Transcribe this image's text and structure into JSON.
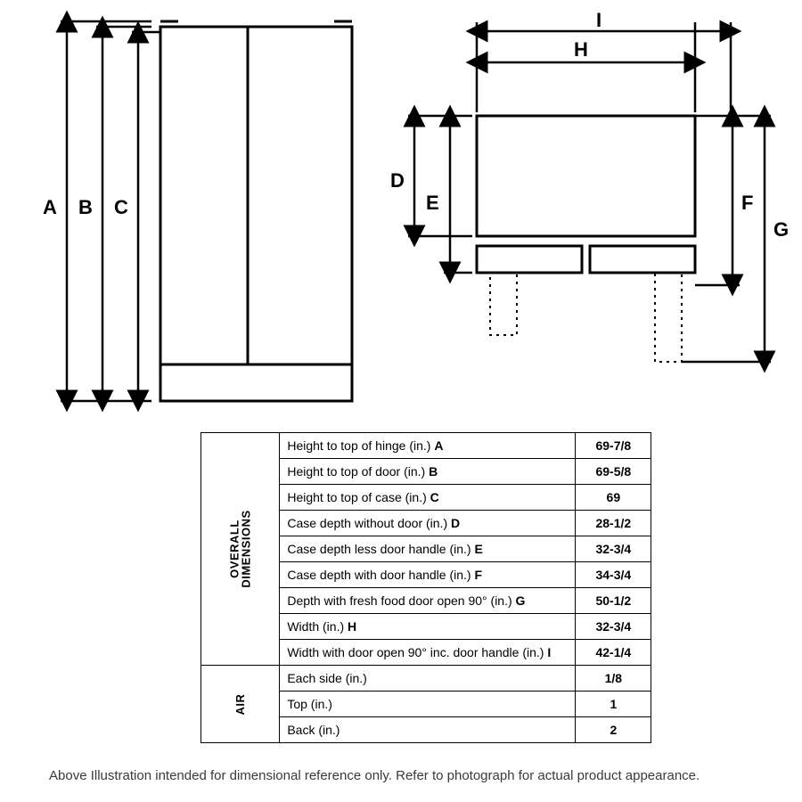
{
  "stroke_color": "#000000",
  "stroke_width_main": 3,
  "stroke_width_thin": 2,
  "dash_pattern": "3,4",
  "front_view": {
    "labels": {
      "A": "A",
      "B": "B",
      "C": "C"
    }
  },
  "top_view": {
    "labels": {
      "D": "D",
      "E": "E",
      "F": "F",
      "G": "G",
      "H": "H",
      "I": "I"
    }
  },
  "table": {
    "group1_label": "OVERALL\nDIMENSIONS",
    "group2_label": "AIR",
    "rows_overall": [
      {
        "label_html": "Height to top of hinge (in.) <b>A</b>",
        "value": "69-7/8"
      },
      {
        "label_html": "Height to top of door (in.) <b>B</b>",
        "value": "69-5/8"
      },
      {
        "label_html": "Height to top of case (in.) <b>C</b>",
        "value": "69"
      },
      {
        "label_html": "Case depth without door (in.) <b>D</b>",
        "value": "28-1/2"
      },
      {
        "label_html": "Case depth less door handle (in.) <b>E</b>",
        "value": "32-3/4"
      },
      {
        "label_html": "Case depth with door handle (in.) <b>F</b>",
        "value": "34-3/4"
      },
      {
        "label_html": "Depth with fresh food door open 90° (in.) <b>G</b>",
        "value": "50-1/2"
      },
      {
        "label_html": "Width (in.) <b>H</b>",
        "value": "32-3/4"
      },
      {
        "label_html": "Width with door open 90° inc. door handle (in.) <b>I</b>",
        "value": "42-1/4"
      }
    ],
    "rows_air": [
      {
        "label_html": "Each side (in.)",
        "value": "1/8"
      },
      {
        "label_html": "Top (in.)",
        "value": "1"
      },
      {
        "label_html": "Back (in.)",
        "value": "2"
      }
    ]
  },
  "footnote": "Above Illustration intended for dimensional reference only. Refer to photograph for actual product appearance."
}
